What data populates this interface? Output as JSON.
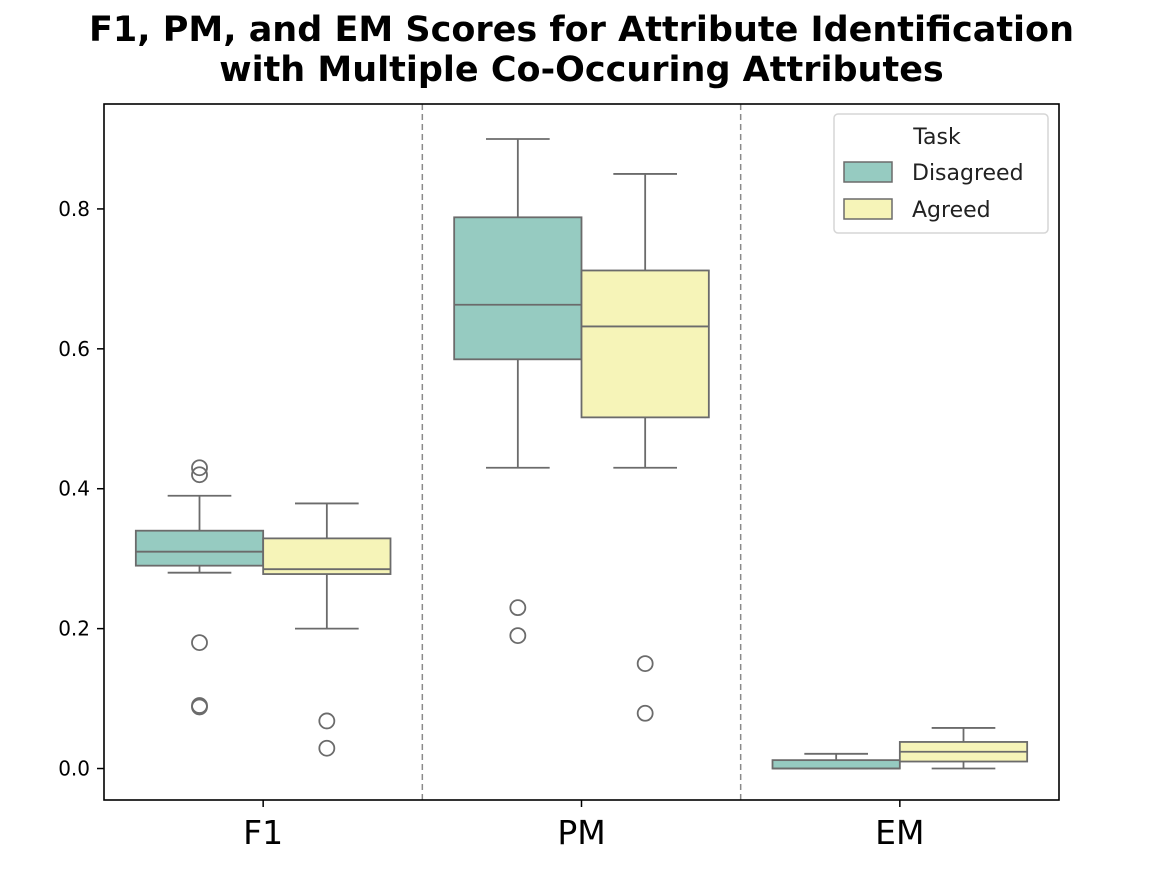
{
  "chart_data": {
    "type": "box",
    "title_lines": [
      "F1, PM, and EM Scores for Attribute Identification",
      "with Multiple Co-Occuring Attributes"
    ],
    "xlabel": "",
    "ylabel": "",
    "categories": [
      "F1",
      "PM",
      "EM"
    ],
    "ylim": [
      -0.045,
      0.95
    ],
    "yticks": [
      0.0,
      0.2,
      0.4,
      0.6,
      0.8
    ],
    "ytick_labels": [
      "0.0",
      "0.2",
      "0.4",
      "0.6",
      "0.8"
    ],
    "grid": false,
    "category_separators": "dashed",
    "legend": {
      "title": "Task",
      "placement": "top-right"
    },
    "series": [
      {
        "name": "Disagreed",
        "color": "#96cbc1",
        "boxes": [
          {
            "category": "F1",
            "whisker_low": 0.28,
            "q1": 0.29,
            "median": 0.31,
            "q3": 0.34,
            "whisker_high": 0.39,
            "outliers": [
              0.43,
              0.42,
              0.18,
              0.09,
              0.088
            ]
          },
          {
            "category": "PM",
            "whisker_low": 0.43,
            "q1": 0.585,
            "median": 0.663,
            "q3": 0.788,
            "whisker_high": 0.9,
            "outliers": [
              0.23,
              0.19
            ]
          },
          {
            "category": "EM",
            "whisker_low": 0.0,
            "q1": 0.0,
            "median": 0.0,
            "q3": 0.012,
            "whisker_high": 0.021,
            "outliers": []
          }
        ]
      },
      {
        "name": "Agreed",
        "color": "#f6f4b8",
        "boxes": [
          {
            "category": "F1",
            "whisker_low": 0.2,
            "q1": 0.278,
            "median": 0.285,
            "q3": 0.329,
            "whisker_high": 0.379,
            "outliers": [
              0.068,
              0.029
            ]
          },
          {
            "category": "PM",
            "whisker_low": 0.43,
            "q1": 0.502,
            "median": 0.632,
            "q3": 0.712,
            "whisker_high": 0.85,
            "outliers": [
              0.15,
              0.079
            ]
          },
          {
            "category": "EM",
            "whisker_low": 0.0,
            "q1": 0.01,
            "median": 0.024,
            "q3": 0.038,
            "whisker_high": 0.058,
            "outliers": []
          }
        ]
      }
    ]
  }
}
